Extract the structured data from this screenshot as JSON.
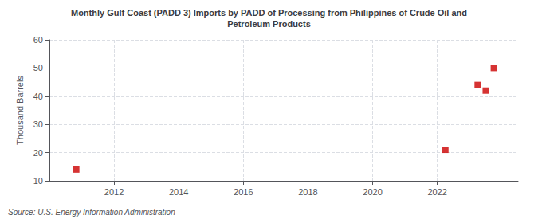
{
  "chart_data": {
    "type": "scatter",
    "title": "Monthly Gulf Coast (PADD 3) Imports by PADD of Processing from Philippines of Crude Oil and\nPetroleum Products",
    "ylabel": "Thousand Barrels",
    "annotations": [
      "Source: U.S. Energy Information Administration"
    ],
    "x": [
      2010.83,
      2022.25,
      2023.25,
      2023.5,
      2023.75
    ],
    "values": [
      14,
      21,
      44,
      42,
      50
    ],
    "color": "#cc0000",
    "marker": "square",
    "xlim": [
      2010.0,
      2024.5
    ],
    "ylim": [
      10,
      60
    ],
    "xticks": [
      2012,
      2014,
      2016,
      2018,
      2020,
      2022
    ],
    "yticks": [
      10,
      20,
      30,
      40,
      50,
      60
    ],
    "grid": true
  }
}
